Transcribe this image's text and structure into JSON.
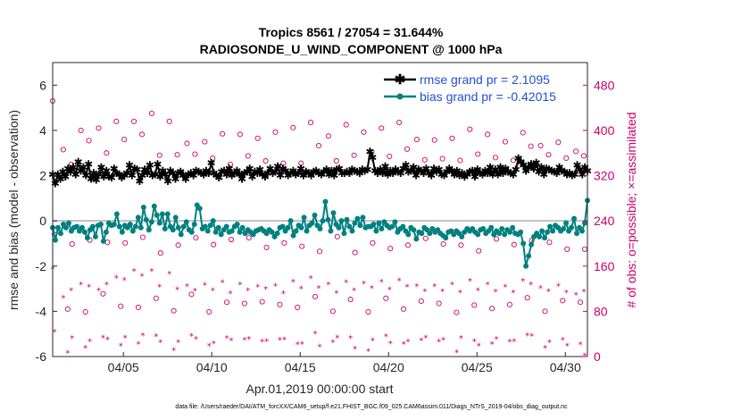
{
  "chart_data": {
    "type": "line",
    "title_line1": "Tropics 8561 / 27054 = 31.644%",
    "title_line2": "RADIOSONDE_U_WIND_COMPONENT @ 1000 hPa",
    "ylabel_left": "rmse and bias (model - observation)",
    "ylabel_right": "# of obs: o=possible; ×=assimilated",
    "xlabel": "Apr.01,2019 00:00:00 start",
    "footnote": "data file: /Users/raeder/DAI/ATM_forcXX/CAM6_setup/f.e21.FHIST_BGC.f09_025.CAM6assim.011/Diags_NTrS_2019-04/obs_diag_output.nc",
    "ylim_left": [
      -6,
      7
    ],
    "ylim_right": [
      0,
      520
    ],
    "xlim": [
      1,
      31.25
    ],
    "yticks_left": [
      "-6",
      "-4",
      "-2",
      "0",
      "2",
      "4",
      "6"
    ],
    "yticks_right": [
      "0",
      "80",
      "160",
      "240",
      "320",
      "400",
      "480"
    ],
    "xticks": [
      "04/05",
      "04/10",
      "04/15",
      "04/20",
      "04/25",
      "04/30"
    ],
    "legend_position": "top-right",
    "colors": {
      "rmse": "#000000",
      "bias": "#008080",
      "obs": "#cc0066",
      "zero_line": "#c0c0c0",
      "legend_text": "#1f4fd6"
    },
    "series": [
      {
        "name": "rmse grand pr = 2.1095",
        "values": [
          2.05,
          1.65,
          2.05,
          1.85,
          2.15,
          1.95,
          2.3,
          2.15,
          2.35,
          2.05,
          2.6,
          2.2,
          2.35,
          2.0,
          2.5,
          1.85,
          2.1,
          1.8,
          2.05,
          2.35,
          1.95,
          2.2,
          1.95,
          1.9,
          2.3,
          2.1,
          2.05,
          1.9,
          2.0,
          2.1,
          2.45,
          2.0,
          2.3,
          2.25,
          1.75,
          2.0,
          2.25,
          2.1,
          2.45,
          2.0,
          2.05,
          2.5,
          1.95,
          2.2,
          2.05,
          1.75,
          2.2,
          2.1,
          1.85,
          2.1,
          2.15,
          2.0,
          1.85,
          2.05,
          2.1,
          2.0,
          2.2,
          2.15,
          2.1,
          2.05,
          2.2,
          2.1,
          2.55,
          2.1,
          2.0,
          1.9,
          2.15,
          2.2,
          2.05,
          2.3,
          2.0,
          2.1,
          2.2,
          2.05,
          1.85,
          2.1,
          2.15,
          2.3,
          1.95,
          2.15,
          2.1,
          2.25,
          2.05,
          1.95,
          2.1,
          2.3,
          2.1,
          2.15,
          2.4,
          2.0,
          2.3,
          2.2,
          2.0,
          2.1,
          2.2,
          2.05,
          2.1,
          2.3,
          2.0,
          2.15,
          2.1,
          2.0,
          2.15,
          2.2,
          2.1,
          2.05,
          2.15,
          2.25,
          2.05,
          2.2,
          2.0,
          2.25,
          2.3,
          2.1,
          2.1,
          2.15,
          2.1,
          2.25,
          2.2,
          2.15,
          2.1,
          2.25,
          2.2,
          2.25,
          3.05,
          2.8,
          2.2,
          2.1,
          2.25,
          2.1,
          2.4,
          2.05,
          2.2,
          2.1,
          2.25,
          2.15,
          2.1,
          2.3,
          2.45,
          2.15,
          2.2,
          2.35,
          2.0,
          2.25,
          2.2,
          2.1,
          2.3,
          2.1,
          2.0,
          2.3,
          2.15,
          2.25,
          2.05,
          2.0,
          2.15,
          2.3,
          2.2,
          2.05,
          2.2,
          2.0,
          2.1,
          1.95,
          2.05,
          2.15,
          2.2,
          1.95,
          2.25,
          2.1,
          2.05,
          2.2,
          2.1,
          2.35,
          2.05,
          2.25,
          2.05,
          2.35,
          2.1,
          2.3,
          2.15,
          2.1,
          2.05,
          2.25,
          2.75,
          2.6,
          2.45,
          2.2,
          2.35,
          2.5,
          2.3,
          2.55,
          2.15,
          2.35,
          2.05,
          2.3,
          2.25,
          2.2,
          2.15,
          2.1,
          2.35,
          2.2,
          2.15,
          2.05,
          2.1,
          2.0,
          2.05,
          2.45,
          2.25,
          2.05,
          2.35,
          2.2
        ]
      },
      {
        "name": "bias grand pr = -0.42015",
        "values": [
          -0.3,
          -0.85,
          -0.3,
          -0.55,
          -0.15,
          -0.3,
          -0.1,
          -0.45,
          -0.3,
          -0.25,
          -0.45,
          -0.3,
          -0.5,
          -0.75,
          -0.4,
          -0.25,
          -0.7,
          -0.2,
          -0.15,
          -0.9,
          -0.5,
          -0.1,
          -0.2,
          -0.15,
          0.3,
          -0.25,
          -0.5,
          -0.2,
          -0.3,
          -0.15,
          -0.45,
          -0.25,
          0.15,
          -0.3,
          0.6,
          0.05,
          -0.4,
          -0.05,
          0.65,
          0.25,
          -0.1,
          0.3,
          -0.35,
          0.3,
          -0.25,
          -0.4,
          0.15,
          -0.3,
          -0.6,
          -0.25,
          -0.05,
          -0.4,
          -0.5,
          -0.15,
          0.7,
          0.55,
          -0.35,
          -0.25,
          -0.45,
          -0.2,
          0.0,
          -0.5,
          -0.3,
          -0.6,
          -0.4,
          -0.25,
          -0.5,
          -0.45,
          -0.25,
          -0.15,
          -0.5,
          -0.3,
          -0.55,
          -0.4,
          -0.5,
          -0.6,
          -0.45,
          -0.4,
          -0.35,
          -0.45,
          -0.55,
          -0.4,
          -0.5,
          -0.7,
          -0.55,
          -0.3,
          -0.25,
          -0.45,
          -0.3,
          0.0,
          -0.65,
          -0.45,
          -0.2,
          -0.3,
          0.15,
          -0.45,
          -0.2,
          -0.1,
          0.25,
          -0.2,
          -0.35,
          0.0,
          0.85,
          0.05,
          -0.45,
          0.35,
          -0.15,
          -0.3,
          0.0,
          -0.55,
          0.05,
          -0.25,
          -0.45,
          -0.1,
          0.1,
          -0.2,
          0.15,
          -0.3,
          -0.25,
          -0.25,
          -0.15,
          -0.45,
          -0.1,
          -0.35,
          -0.05,
          -0.2,
          -0.3,
          -0.25,
          -0.05,
          -0.5,
          -0.35,
          -0.25,
          -0.45,
          -0.6,
          -0.3,
          -0.4,
          -0.8,
          -0.5,
          -0.55,
          -0.3,
          -0.4,
          -0.55,
          -0.35,
          -0.5,
          -0.4,
          -0.55,
          -0.65,
          -0.75,
          -0.5,
          -0.45,
          -0.6,
          -0.45,
          -0.55,
          -0.7,
          -0.5,
          -0.35,
          -0.45,
          -0.35,
          -0.5,
          -0.6,
          -0.4,
          -0.35,
          -0.55,
          -0.45,
          -0.3,
          -0.6,
          -0.45,
          -0.55,
          -0.35,
          -0.6,
          -0.4,
          -0.5,
          -0.3,
          -0.55,
          -0.6,
          -0.5,
          -1.0,
          -2.0,
          -1.55,
          -1.05,
          -0.7,
          -0.55,
          -0.7,
          -0.45,
          -0.75,
          -0.5,
          -0.25,
          -0.45,
          -0.2,
          -0.3,
          -0.45,
          -0.35,
          -0.1,
          -0.45,
          -0.3,
          0.1,
          -0.55,
          -0.3,
          -0.45,
          -0.1,
          0.9
        ]
      }
    ],
    "obs_possible": [
      [
        1.0,
        452
      ],
      [
        1.1,
        216
      ],
      [
        1.6,
        366
      ],
      [
        1.85,
        84
      ],
      [
        2.05,
        340
      ],
      [
        2.1,
        199
      ],
      [
        2.6,
        400
      ],
      [
        2.85,
        79
      ],
      [
        3.05,
        382
      ],
      [
        3.1,
        206
      ],
      [
        3.6,
        404
      ],
      [
        3.85,
        111
      ],
      [
        4.05,
        360
      ],
      [
        4.1,
        202
      ],
      [
        4.6,
        416
      ],
      [
        4.85,
        89
      ],
      [
        5.05,
        384
      ],
      [
        5.1,
        201
      ],
      [
        5.6,
        416
      ],
      [
        5.85,
        87
      ],
      [
        6.05,
        393
      ],
      [
        6.1,
        211
      ],
      [
        6.6,
        430
      ],
      [
        6.85,
        103
      ],
      [
        7.05,
        356
      ],
      [
        7.1,
        183
      ],
      [
        7.6,
        416
      ],
      [
        7.85,
        81
      ],
      [
        8.05,
        357
      ],
      [
        8.1,
        197
      ],
      [
        8.6,
        377
      ],
      [
        8.85,
        110
      ],
      [
        9.05,
        358
      ],
      [
        9.1,
        210
      ],
      [
        9.6,
        380
      ],
      [
        9.85,
        79
      ],
      [
        10.05,
        351
      ],
      [
        10.1,
        198
      ],
      [
        10.6,
        394
      ],
      [
        10.85,
        96
      ],
      [
        11.05,
        340
      ],
      [
        11.1,
        207
      ],
      [
        11.6,
        393
      ],
      [
        11.85,
        94
      ],
      [
        12.05,
        355
      ],
      [
        12.1,
        210
      ],
      [
        12.6,
        386
      ],
      [
        12.85,
        97
      ],
      [
        13.05,
        346
      ],
      [
        13.1,
        193
      ],
      [
        13.6,
        397
      ],
      [
        13.85,
        92
      ],
      [
        14.05,
        342
      ],
      [
        14.1,
        201
      ],
      [
        14.6,
        405
      ],
      [
        14.85,
        87
      ],
      [
        15.05,
        342
      ],
      [
        15.1,
        195
      ],
      [
        15.6,
        414
      ],
      [
        15.85,
        106
      ],
      [
        16.05,
        373
      ],
      [
        16.1,
        186
      ],
      [
        16.6,
        390
      ],
      [
        16.85,
        80
      ],
      [
        17.05,
        346
      ],
      [
        17.1,
        212
      ],
      [
        17.6,
        410
      ],
      [
        17.85,
        101
      ],
      [
        18.05,
        356
      ],
      [
        18.1,
        184
      ],
      [
        18.6,
        397
      ],
      [
        18.85,
        79
      ],
      [
        19.05,
        362
      ],
      [
        19.1,
        201
      ],
      [
        19.6,
        404
      ],
      [
        19.85,
        103
      ],
      [
        20.05,
        354
      ],
      [
        20.1,
        191
      ],
      [
        20.6,
        414
      ],
      [
        20.85,
        84
      ],
      [
        21.05,
        367
      ],
      [
        21.1,
        197
      ],
      [
        21.6,
        384
      ],
      [
        21.85,
        98
      ],
      [
        22.05,
        348
      ],
      [
        22.1,
        209
      ],
      [
        22.6,
        383
      ],
      [
        22.85,
        94
      ],
      [
        23.05,
        350
      ],
      [
        23.1,
        199
      ],
      [
        23.6,
        386
      ],
      [
        23.85,
        78
      ],
      [
        24.05,
        347
      ],
      [
        24.1,
        197
      ],
      [
        24.6,
        402
      ],
      [
        24.85,
        91
      ],
      [
        25.05,
        358
      ],
      [
        25.1,
        187
      ],
      [
        25.6,
        393
      ],
      [
        25.85,
        85
      ],
      [
        26.05,
        352
      ],
      [
        26.1,
        208
      ],
      [
        26.6,
        380
      ],
      [
        26.85,
        92
      ],
      [
        27.05,
        347
      ],
      [
        27.1,
        198
      ],
      [
        27.6,
        396
      ],
      [
        27.85,
        104
      ],
      [
        28.05,
        372
      ],
      [
        28.1,
        205
      ],
      [
        28.6,
        373
      ],
      [
        28.85,
        80
      ],
      [
        29.05,
        357
      ],
      [
        29.1,
        202
      ],
      [
        29.6,
        379
      ],
      [
        29.85,
        99
      ],
      [
        30.05,
        351
      ],
      [
        30.1,
        190
      ],
      [
        30.6,
        363
      ],
      [
        30.85,
        96
      ],
      [
        31.05,
        355
      ],
      [
        31.1,
        190
      ]
    ],
    "obs_assimilated": [
      [
        1.0,
        156
      ],
      [
        1.1,
        44
      ],
      [
        1.6,
        104
      ],
      [
        1.85,
        7
      ],
      [
        2.05,
        118
      ],
      [
        2.1,
        33
      ],
      [
        2.6,
        128
      ],
      [
        2.85,
        16
      ],
      [
        3.05,
        124
      ],
      [
        3.1,
        28
      ],
      [
        3.6,
        118
      ],
      [
        3.85,
        34
      ],
      [
        4.05,
        128
      ],
      [
        4.1,
        31
      ],
      [
        4.6,
        140
      ],
      [
        4.85,
        20
      ],
      [
        5.05,
        136
      ],
      [
        5.1,
        34
      ],
      [
        5.6,
        152
      ],
      [
        5.85,
        23
      ],
      [
        6.05,
        143
      ],
      [
        6.1,
        38
      ],
      [
        6.6,
        152
      ],
      [
        6.85,
        36
      ],
      [
        7.05,
        124
      ],
      [
        7.1,
        26
      ],
      [
        7.6,
        147
      ],
      [
        7.85,
        12
      ],
      [
        8.05,
        119
      ],
      [
        8.1,
        26
      ],
      [
        8.6,
        125
      ],
      [
        8.85,
        37
      ],
      [
        9.05,
        117
      ],
      [
        9.1,
        32
      ],
      [
        9.6,
        127
      ],
      [
        9.85,
        20
      ],
      [
        10.05,
        118
      ],
      [
        10.1,
        24
      ],
      [
        10.6,
        132
      ],
      [
        10.85,
        33
      ],
      [
        11.05,
        112
      ],
      [
        11.1,
        29
      ],
      [
        11.6,
        128
      ],
      [
        11.85,
        30
      ],
      [
        12.05,
        118
      ],
      [
        12.1,
        32
      ],
      [
        12.6,
        124
      ],
      [
        12.85,
        27
      ],
      [
        13.05,
        120
      ],
      [
        13.1,
        28
      ],
      [
        13.6,
        126
      ],
      [
        13.85,
        30
      ],
      [
        14.05,
        112
      ],
      [
        14.1,
        31
      ],
      [
        14.6,
        133
      ],
      [
        14.85,
        22
      ],
      [
        15.05,
        121
      ],
      [
        15.1,
        23
      ],
      [
        15.6,
        139
      ],
      [
        15.85,
        41
      ],
      [
        16.05,
        122
      ],
      [
        16.1,
        18
      ],
      [
        16.6,
        128
      ],
      [
        16.85,
        26
      ],
      [
        17.05,
        113
      ],
      [
        17.1,
        34
      ],
      [
        17.6,
        132
      ],
      [
        17.85,
        33
      ],
      [
        18.05,
        118
      ],
      [
        18.1,
        14
      ],
      [
        18.6,
        130
      ],
      [
        18.85,
        10
      ],
      [
        19.05,
        122
      ],
      [
        19.1,
        29
      ],
      [
        19.6,
        133
      ],
      [
        19.85,
        36
      ],
      [
        20.05,
        119
      ],
      [
        20.1,
        24
      ],
      [
        20.6,
        135
      ],
      [
        20.85,
        23
      ],
      [
        21.05,
        124
      ],
      [
        21.1,
        27
      ],
      [
        21.6,
        125
      ],
      [
        21.85,
        29
      ],
      [
        22.05,
        116
      ],
      [
        22.1,
        34
      ],
      [
        22.6,
        125
      ],
      [
        22.85,
        27
      ],
      [
        23.05,
        116
      ],
      [
        23.1,
        30
      ],
      [
        23.6,
        128
      ],
      [
        23.85,
        8
      ],
      [
        24.05,
        114
      ],
      [
        24.1,
        33
      ],
      [
        24.6,
        134
      ],
      [
        24.85,
        28
      ],
      [
        25.05,
        118
      ],
      [
        25.1,
        20
      ],
      [
        25.6,
        128
      ],
      [
        25.85,
        23
      ],
      [
        26.05,
        115
      ],
      [
        26.1,
        32
      ],
      [
        26.6,
        124
      ],
      [
        26.85,
        27
      ],
      [
        27.05,
        114
      ],
      [
        27.1,
        28
      ],
      [
        27.6,
        134
      ],
      [
        27.85,
        38
      ],
      [
        28.05,
        128
      ],
      [
        28.1,
        37
      ],
      [
        28.6,
        122
      ],
      [
        28.85,
        16
      ],
      [
        29.05,
        116
      ],
      [
        29.1,
        26
      ],
      [
        29.6,
        126
      ],
      [
        29.85,
        30
      ],
      [
        30.05,
        114
      ],
      [
        30.1,
        20
      ],
      [
        30.6,
        110
      ],
      [
        30.85,
        22
      ],
      [
        31.05,
        115
      ],
      [
        31.1,
        2
      ]
    ]
  }
}
